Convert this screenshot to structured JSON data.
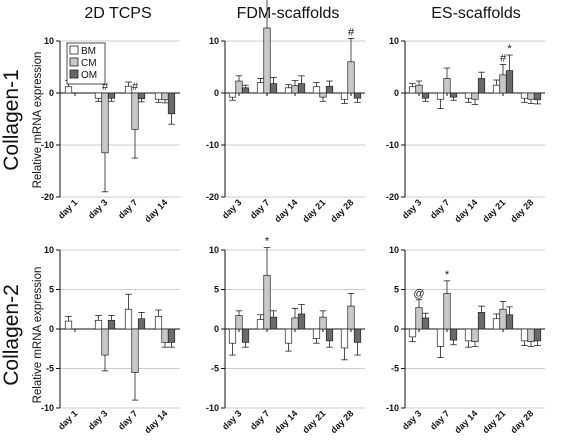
{
  "column_titles": [
    "2D TCPS",
    "FDM-scaffolds",
    "ES-scaffolds"
  ],
  "row_titles": [
    "Collagen-1",
    "Collagen-2"
  ],
  "ylabel": "Relative mRNA expression",
  "legend": [
    "BM",
    "CM",
    "OM"
  ],
  "colors": {
    "BM": "#ffffff",
    "CM": "#c8c8c8",
    "OM": "#6a6a6a",
    "grid": "#bdbdbd"
  },
  "chart_data": [
    {
      "type": "bar",
      "title": "2D TCPS",
      "row": "Collagen-1",
      "categories": [
        "day 1",
        "day 3",
        "day 7",
        "day 14"
      ],
      "ylim": [
        -20,
        10
      ],
      "yticks": [
        -20,
        -10,
        0,
        10
      ],
      "grid": true,
      "legend": "top-left",
      "series": [
        {
          "name": "BM",
          "values": [
            1.2,
            -1.0,
            1.3,
            -1.2
          ],
          "errors": [
            1.2,
            0.6,
            0.8,
            0.6
          ]
        },
        {
          "name": "CM",
          "values": [
            0,
            -11.5,
            -7.0,
            -1.3
          ],
          "errors": [
            0,
            7.5,
            5.5,
            0.6
          ]
        },
        {
          "name": "OM",
          "values": [
            0,
            -1.0,
            -1.1,
            -4.0
          ],
          "errors": [
            0,
            0.6,
            0.6,
            2.0
          ]
        }
      ],
      "annotations": [
        {
          "category": "day 3",
          "series": "CM",
          "text": "#"
        },
        {
          "category": "day 7",
          "series": "CM",
          "text": "#"
        }
      ]
    },
    {
      "type": "bar",
      "title": "FDM-scaffolds",
      "row": "Collagen-1",
      "categories": [
        "day 3",
        "day 7",
        "day 14",
        "day 21",
        "day 28"
      ],
      "ylim": [
        -20,
        10
      ],
      "yticks": [
        -20,
        -10,
        0,
        10
      ],
      "grid": true,
      "series": [
        {
          "name": "BM",
          "values": [
            -0.8,
            2.0,
            1.0,
            1.2,
            -1.2
          ],
          "errors": [
            0.6,
            0.8,
            0.6,
            0.8,
            0.8
          ]
        },
        {
          "name": "CM",
          "values": [
            2.3,
            12.5,
            1.4,
            -0.8,
            6.0
          ],
          "errors": [
            1.0,
            7.0,
            1.0,
            0.8,
            4.5
          ]
        },
        {
          "name": "OM",
          "values": [
            1.0,
            1.8,
            1.8,
            1.3,
            -1.0
          ],
          "errors": [
            0.5,
            1.2,
            1.5,
            1.0,
            0.8
          ]
        }
      ],
      "annotations": [
        {
          "category": "day 7",
          "series": "CM",
          "text": "*"
        },
        {
          "category": "day 28",
          "series": "CM",
          "text": "#"
        }
      ]
    },
    {
      "type": "bar",
      "title": "ES-scaffolds",
      "row": "Collagen-1",
      "categories": [
        "day 3",
        "day 7",
        "day 14",
        "day 21",
        "day 28"
      ],
      "ylim": [
        -20,
        10
      ],
      "yticks": [
        -20,
        -10,
        0,
        10
      ],
      "grid": true,
      "series": [
        {
          "name": "BM",
          "values": [
            1.2,
            -1.2,
            -1.0,
            1.5,
            -1.0
          ],
          "errors": [
            0.6,
            1.8,
            0.8,
            1.0,
            0.8
          ]
        },
        {
          "name": "CM",
          "values": [
            1.5,
            2.8,
            -1.2,
            3.5,
            -1.2
          ],
          "errors": [
            0.8,
            2.0,
            1.0,
            2.0,
            0.8
          ]
        },
        {
          "name": "OM",
          "values": [
            -1.0,
            -0.8,
            2.8,
            4.3,
            -1.3
          ],
          "errors": [
            0.6,
            0.6,
            1.2,
            3.0,
            0.8
          ]
        }
      ],
      "annotations": [
        {
          "category": "day 21",
          "series": "CM",
          "text": "#"
        },
        {
          "category": "day 21",
          "series": "OM",
          "text": "*"
        }
      ]
    },
    {
      "type": "bar",
      "title": "2D TCPS",
      "row": "Collagen-2",
      "categories": [
        "day 1",
        "day 3",
        "day 7",
        "day 14"
      ],
      "ylim": [
        -10,
        10
      ],
      "yticks": [
        -10,
        -5,
        0,
        5,
        10
      ],
      "grid": true,
      "series": [
        {
          "name": "BM",
          "values": [
            1.0,
            1.1,
            2.5,
            1.6
          ],
          "errors": [
            0.6,
            0.6,
            1.9,
            0.8
          ]
        },
        {
          "name": "CM",
          "values": [
            0,
            -3.3,
            -5.5,
            -1.7
          ],
          "errors": [
            0,
            2.0,
            3.5,
            0.6
          ]
        },
        {
          "name": "OM",
          "values": [
            0,
            1.1,
            1.3,
            -1.7
          ],
          "errors": [
            0,
            0.6,
            0.8,
            0.6
          ]
        }
      ],
      "annotations": []
    },
    {
      "type": "bar",
      "title": "FDM-scaffolds",
      "row": "Collagen-2",
      "categories": [
        "day 3",
        "day 7",
        "day 14",
        "day 21",
        "day 28"
      ],
      "ylim": [
        -10,
        10
      ],
      "yticks": [
        -10,
        -5,
        0,
        5,
        10
      ],
      "grid": true,
      "series": [
        {
          "name": "BM",
          "values": [
            -1.8,
            1.2,
            -1.8,
            -1.2,
            -2.4
          ],
          "errors": [
            1.5,
            0.6,
            1.0,
            0.6,
            1.5
          ]
        },
        {
          "name": "CM",
          "values": [
            1.7,
            6.8,
            1.4,
            1.5,
            2.9
          ],
          "errors": [
            0.6,
            3.5,
            1.2,
            0.8,
            1.6
          ]
        },
        {
          "name": "OM",
          "values": [
            -1.7,
            1.5,
            1.9,
            -1.5,
            -1.7
          ],
          "errors": [
            0.6,
            0.8,
            1.2,
            0.8,
            1.6
          ]
        }
      ],
      "annotations": [
        {
          "category": "day 7",
          "series": "CM",
          "text": "*"
        }
      ]
    },
    {
      "type": "bar",
      "title": "ES-scaffolds",
      "row": "Collagen-2",
      "categories": [
        "day 3",
        "day 7",
        "day 14",
        "day 21",
        "day 28"
      ],
      "ylim": [
        -10,
        10
      ],
      "yticks": [
        -10,
        -5,
        0,
        5,
        10
      ],
      "grid": true,
      "series": [
        {
          "name": "BM",
          "values": [
            -1.0,
            -2.2,
            -1.5,
            1.3,
            -1.5
          ],
          "errors": [
            0.6,
            1.4,
            0.8,
            0.6,
            0.6
          ]
        },
        {
          "name": "CM",
          "values": [
            2.7,
            4.5,
            -1.6,
            2.5,
            -1.6
          ],
          "errors": [
            1.0,
            1.6,
            0.6,
            1.0,
            0.6
          ]
        },
        {
          "name": "OM",
          "values": [
            1.4,
            -1.4,
            2.1,
            1.8,
            -1.5
          ],
          "errors": [
            0.6,
            0.6,
            0.8,
            1.0,
            0.6
          ]
        }
      ],
      "annotations": [
        {
          "category": "day 3",
          "series": "CM",
          "text": "@"
        },
        {
          "category": "day 7",
          "series": "CM",
          "text": "*"
        }
      ]
    }
  ]
}
